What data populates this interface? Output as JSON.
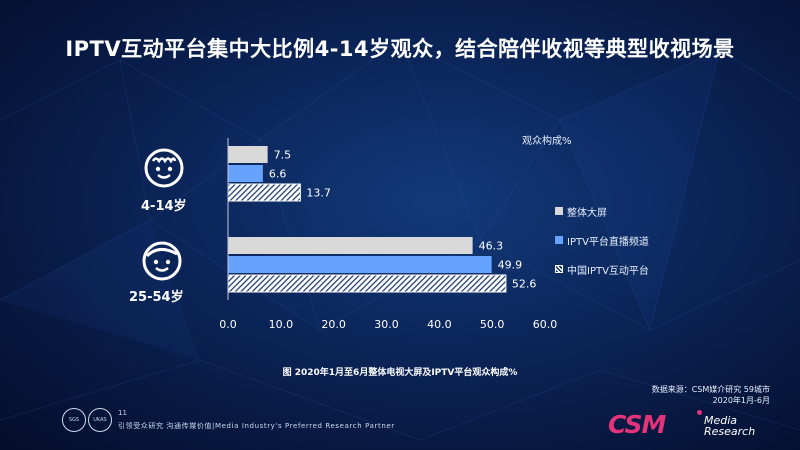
{
  "title": "IPTV互动平台集中大比例4-14岁观众，结合陪伴收视等典型收视场景",
  "unit_label": "观众构成%",
  "caption": "图 2020年1月至6月整体电视大屏及IPTV平台观众构成%",
  "source": {
    "line1": "数据来源：CSM媒介研究 59城市",
    "line2": "2020年1月-6月"
  },
  "footer": {
    "page_number": "11",
    "tagline": "引领受众研究 沟通传媒价值|Media Industry's Preferred Research Partner",
    "badge1": "SGS",
    "badge2": "UKAS"
  },
  "logo": {
    "brand": "CSM",
    "sub1": "Media",
    "sub2": "Research"
  },
  "colors": {
    "overall": "#d9d9d9",
    "live": "#66a3ff",
    "interactive": "#16306e",
    "accent": "#e5337a"
  },
  "icons": {
    "kid": "child-face-icon",
    "adult": "adult-face-icon"
  },
  "chart_data": {
    "type": "bar",
    "orientation": "horizontal",
    "categories": [
      "4-14岁",
      "25-54岁"
    ],
    "series": [
      {
        "name": "整体大屏",
        "values": [
          7.5,
          46.3
        ]
      },
      {
        "name": "IPTV平台直播频道",
        "values": [
          6.6,
          49.9
        ]
      },
      {
        "name": "中国IPTV互动平台",
        "values": [
          13.7,
          52.6
        ]
      }
    ],
    "value_labels": [
      [
        "7.5",
        "46.3"
      ],
      [
        "6.6",
        "49.9"
      ],
      [
        "13.7",
        "52.6"
      ]
    ],
    "xlim": [
      0,
      60
    ],
    "x_ticks": [
      "0.0",
      "10.0",
      "20.0",
      "30.0",
      "40.0",
      "50.0",
      "60.0"
    ],
    "legend_position": "right",
    "grid": false
  }
}
